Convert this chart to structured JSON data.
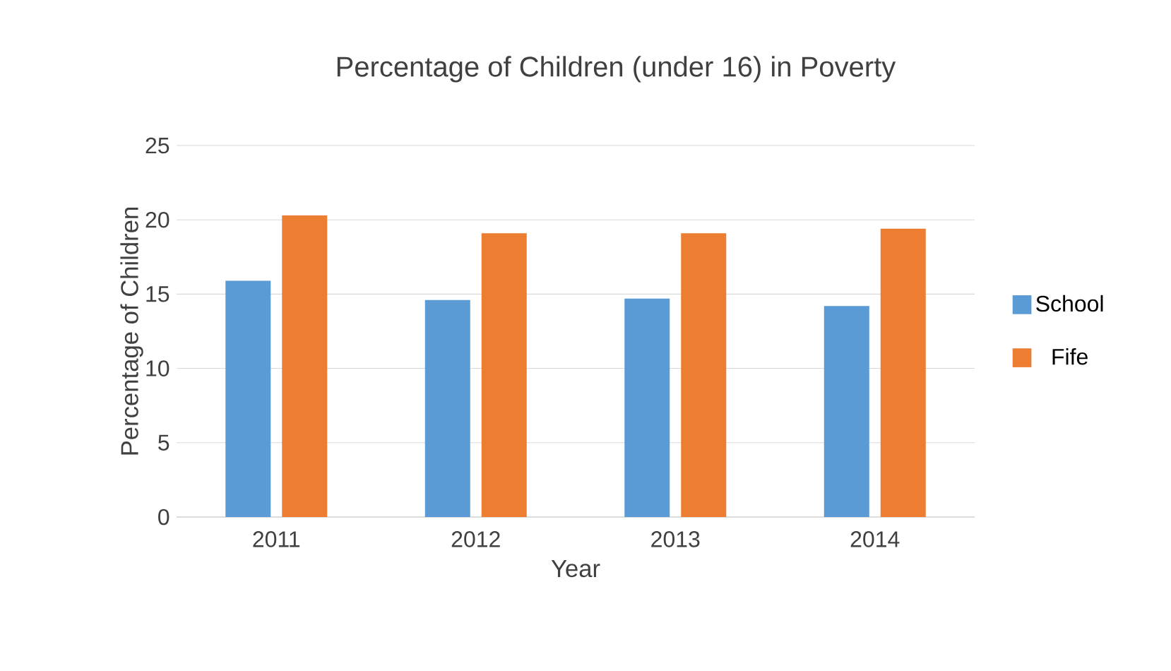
{
  "chart_data": {
    "type": "bar",
    "title": "Percentage of Children (under 16) in Poverty",
    "xlabel": "Year",
    "ylabel": "Percentage of Children",
    "categories": [
      "2011",
      "2012",
      "2013",
      "2014"
    ],
    "series": [
      {
        "name": "School",
        "color": "#5b9bd5",
        "values": [
          15.9,
          14.6,
          14.7,
          14.2
        ]
      },
      {
        "name": "Fife",
        "color": "#ed7d31",
        "values": [
          20.3,
          19.1,
          19.1,
          19.4
        ]
      }
    ],
    "ylim": [
      0,
      25
    ],
    "yticks": [
      0,
      5,
      10,
      15,
      20,
      25
    ],
    "grid": "y",
    "legend": "right"
  }
}
